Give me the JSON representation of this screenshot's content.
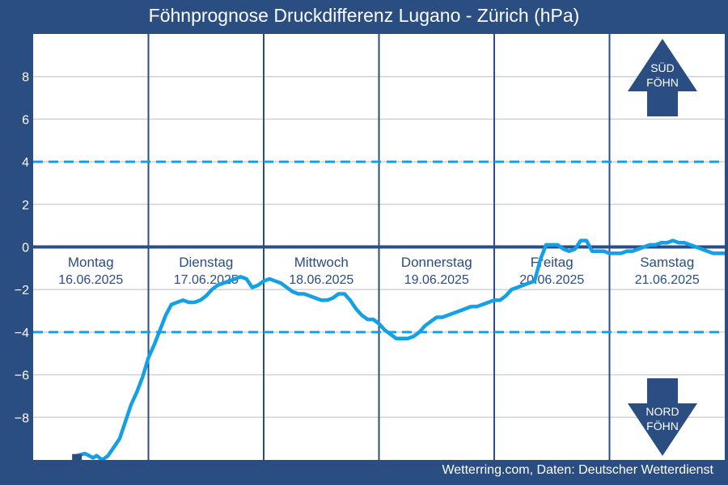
{
  "title": "Föhnprognose Druckdifferenz Lugano - Zürich (hPa)",
  "footer": "Wetterring.com, Daten: Deutscher Wetterdienst",
  "colors": {
    "background": "#2a4d82",
    "plot": "#ffffff",
    "series": "#14a0e6",
    "threshold": "#14a0e6",
    "zero_line": "#2a4d82",
    "day_divider": "#2a4d82",
    "grid": "#d2d2d2",
    "day_label": "#2a4d82"
  },
  "indicators": {
    "sued": {
      "line1": "SÜD",
      "line2": "FÖHN",
      "icon": "arrow-up-icon"
    },
    "nord": {
      "line1": "NORD",
      "line2": "FÖHN",
      "icon": "arrow-down-icon"
    }
  },
  "chart_data": {
    "type": "line",
    "title": "Föhnprognose Druckdifferenz Lugano - Zürich (hPa)",
    "xlabel": "",
    "ylabel": "",
    "ylim": [
      -10,
      10
    ],
    "yticks": [
      -8,
      -6,
      -4,
      -2,
      0,
      2,
      4,
      6,
      8
    ],
    "xlim": [
      0,
      6
    ],
    "grid": true,
    "legend": "none",
    "thresholds": [
      4,
      -4
    ],
    "days": [
      {
        "name": "Montag",
        "date": "16.06.2025"
      },
      {
        "name": "Dienstag",
        "date": "17.06.2025"
      },
      {
        "name": "Mittwoch",
        "date": "18.06.2025"
      },
      {
        "name": "Donnerstag",
        "date": "19.06.2025"
      },
      {
        "name": "Freitag",
        "date": "20.06.2025"
      },
      {
        "name": "Samstag",
        "date": "21.06.2025"
      }
    ],
    "series": [
      {
        "x": [
          0.38,
          0.45,
          0.52,
          0.55,
          0.6,
          0.65,
          0.7,
          0.75,
          0.8,
          0.85,
          0.9,
          0.95,
          1.0,
          1.05,
          1.1,
          1.15,
          1.2,
          1.25,
          1.3,
          1.35,
          1.4,
          1.45,
          1.5,
          1.55,
          1.6,
          1.65,
          1.7,
          1.75,
          1.8,
          1.85,
          1.9,
          1.95,
          2.0,
          2.05,
          2.1,
          2.15,
          2.2,
          2.25,
          2.3,
          2.35,
          2.4,
          2.45,
          2.5,
          2.55,
          2.6,
          2.65,
          2.7,
          2.75,
          2.8,
          2.85,
          2.9,
          2.95,
          3.0,
          3.05,
          3.1,
          3.15,
          3.2,
          3.25,
          3.3,
          3.35,
          3.4,
          3.45,
          3.5,
          3.55,
          3.6,
          3.65,
          3.7,
          3.75,
          3.8,
          3.85,
          3.9,
          3.95,
          4.0,
          4.05,
          4.1,
          4.15,
          4.2,
          4.25,
          4.3,
          4.35,
          4.4,
          4.45,
          4.5,
          4.55,
          4.6,
          4.65,
          4.7,
          4.75,
          4.8,
          4.85,
          4.9,
          4.95,
          5.0,
          5.05,
          5.1,
          5.15,
          5.2,
          5.25,
          5.3,
          5.35,
          5.4,
          5.45,
          5.5,
          5.55,
          5.6,
          5.65,
          5.7,
          5.75,
          5.8,
          5.85,
          5.9,
          5.95,
          6.0
        ],
        "y": [
          -9.8,
          -9.7,
          -9.9,
          -9.8,
          -10.0,
          -9.8,
          -9.4,
          -9.0,
          -8.2,
          -7.4,
          -6.8,
          -6.1,
          -5.2,
          -4.6,
          -3.9,
          -3.2,
          -2.7,
          -2.6,
          -2.5,
          -2.6,
          -2.6,
          -2.5,
          -2.3,
          -2.0,
          -1.8,
          -1.7,
          -1.6,
          -1.5,
          -1.4,
          -1.5,
          -1.9,
          -1.8,
          -1.6,
          -1.5,
          -1.6,
          -1.7,
          -1.9,
          -2.1,
          -2.2,
          -2.2,
          -2.3,
          -2.4,
          -2.5,
          -2.5,
          -2.4,
          -2.2,
          -2.2,
          -2.5,
          -2.9,
          -3.2,
          -3.4,
          -3.4,
          -3.6,
          -3.9,
          -4.1,
          -4.3,
          -4.3,
          -4.3,
          -4.2,
          -4.0,
          -3.7,
          -3.5,
          -3.3,
          -3.3,
          -3.2,
          -3.1,
          -3.0,
          -2.9,
          -2.8,
          -2.8,
          -2.7,
          -2.6,
          -2.5,
          -2.5,
          -2.3,
          -2.0,
          -1.9,
          -1.8,
          -1.7,
          -1.6,
          -0.6,
          0.1,
          0.1,
          0.1,
          -0.1,
          -0.2,
          -0.1,
          0.3,
          0.3,
          -0.2,
          -0.2,
          -0.2,
          -0.3,
          -0.3,
          -0.3,
          -0.2,
          -0.2,
          -0.1,
          0.0,
          0.1,
          0.1,
          0.2,
          0.2,
          0.3,
          0.2,
          0.2,
          0.1,
          0.0,
          -0.1,
          -0.2,
          -0.3,
          -0.3,
          -0.3
        ]
      }
    ]
  }
}
